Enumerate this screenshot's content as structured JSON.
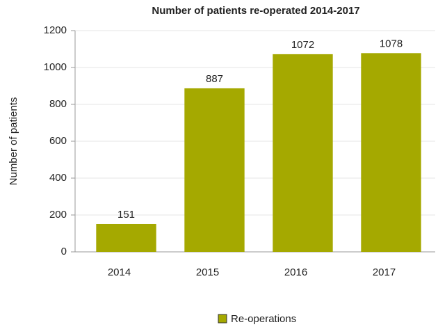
{
  "chart_data": {
    "type": "bar",
    "title": "Number of patients re-operated 2014-2017",
    "y_label": "Number of patients",
    "categories": [
      "2014",
      "2015",
      "2016",
      "2017"
    ],
    "series": [
      {
        "name": "Re-operations",
        "color": "#a5a900",
        "values": [
          151,
          887,
          1072,
          1078
        ]
      }
    ],
    "ylim": [
      0,
      1200
    ],
    "yticks": [
      0,
      200,
      400,
      600,
      800,
      1000,
      1200
    ],
    "grid": true,
    "legend": "bottom"
  }
}
